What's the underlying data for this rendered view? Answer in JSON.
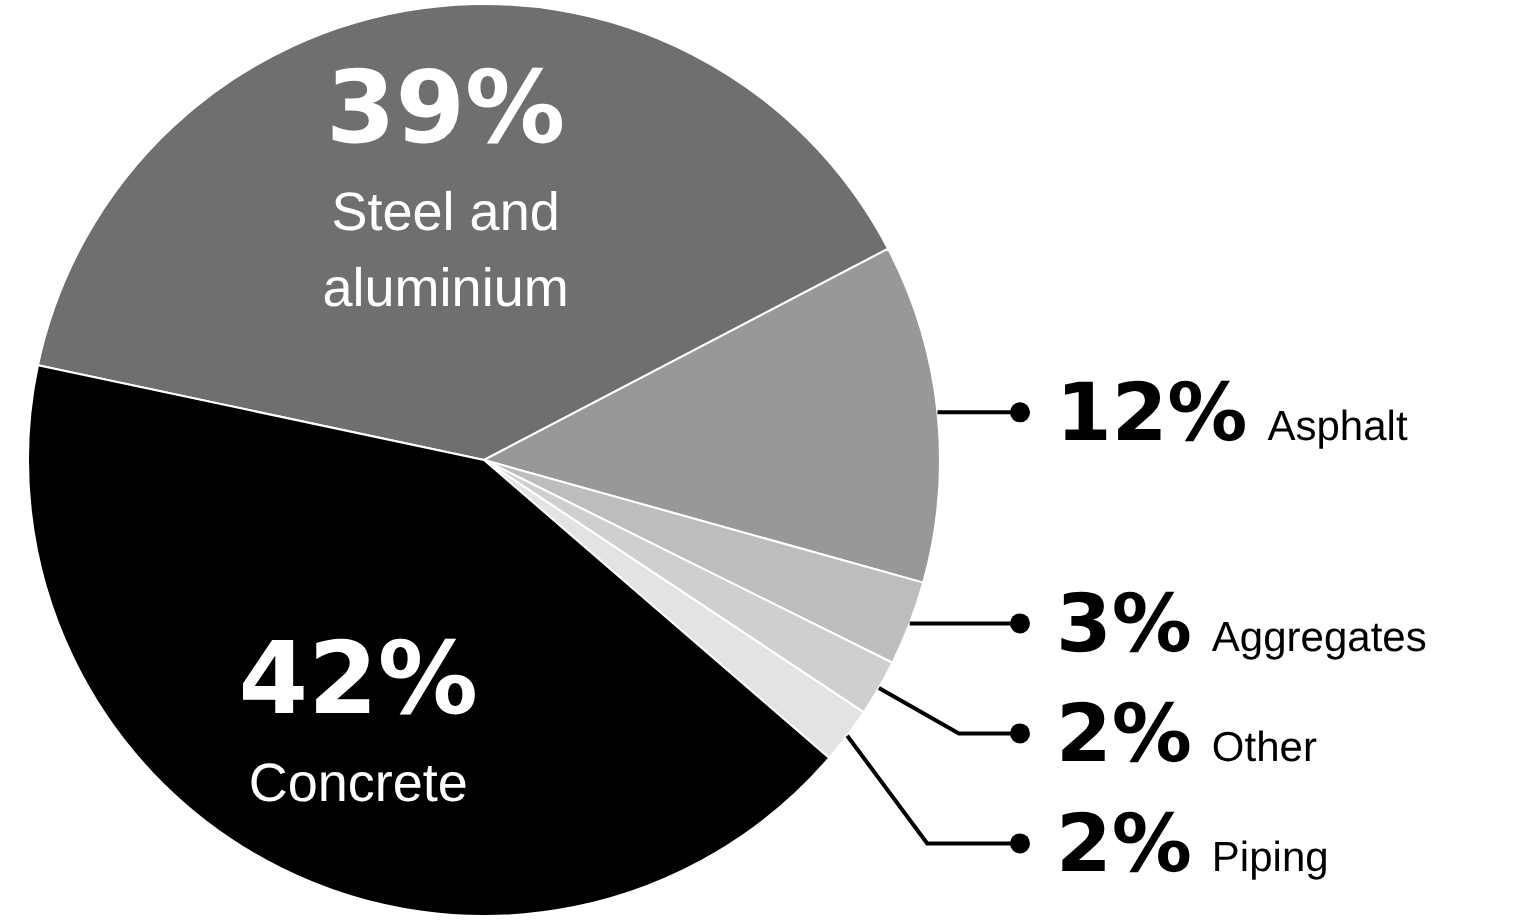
{
  "chart_data": {
    "type": "pie",
    "categories": [
      "Steel and aluminium",
      "Asphalt",
      "Aggregates",
      "Other",
      "Piping",
      "Concrete"
    ],
    "values": [
      39,
      12,
      3,
      2,
      2,
      42
    ],
    "value_labels": [
      "39%",
      "12%",
      "3%",
      "2%",
      "2%",
      "42%"
    ],
    "colors": [
      "#6f6f72",
      "#98989b",
      "#bdbdbf",
      "#cfcfd1",
      "#e3e3e5",
      "#000000"
    ]
  }
}
